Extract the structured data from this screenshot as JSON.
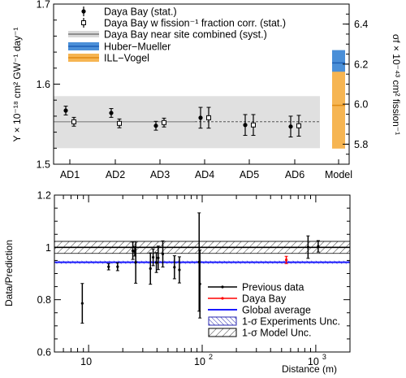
{
  "chart_data": [
    {
      "type": "scatter",
      "ylabel": "Y × 10⁻¹⁸ cm² GW⁻¹ day⁻¹",
      "y2label": "σf × 10⁻⁴³ cm² fission⁻¹",
      "ylim": [
        1.5,
        1.7
      ],
      "y2lim": [
        5.7,
        6.5
      ],
      "yticks": [
        "1.5",
        "1.6",
        "1.7"
      ],
      "y2ticks": [
        "5.8",
        "6.0",
        "6.2",
        "6.4"
      ],
      "categories": [
        "AD1",
        "AD2",
        "AD3",
        "AD4",
        "AD5",
        "AD6",
        "Model"
      ],
      "legend": {
        "placement": "top",
        "entries": [
          {
            "key": "stat",
            "label": "Daya Bay (stat.)"
          },
          {
            "key": "corr",
            "label": "Daya Bay w fission⁻¹ fraction corr. (stat.)"
          },
          {
            "key": "combined",
            "label": "Daya Bay near site combined (syst.)"
          },
          {
            "key": "huber",
            "label": "Huber−Mueller"
          },
          {
            "key": "ill",
            "label": "ILL−Vogel"
          }
        ]
      },
      "series": [
        {
          "name": "Daya Bay (stat.)",
          "x": [
            "AD1",
            "AD2",
            "AD3",
            "AD4",
            "AD5",
            "AD6"
          ],
          "values": [
            1.567,
            1.564,
            1.548,
            1.558,
            1.549,
            1.547
          ],
          "err": [
            0.0055,
            0.0055,
            0.0055,
            0.013,
            0.013,
            0.013
          ]
        },
        {
          "name": "Daya Bay w fission⁻¹ fraction corr. (stat.)",
          "x": [
            "AD1",
            "AD2",
            "AD3",
            "AD4",
            "AD5",
            "AD6"
          ],
          "values": [
            1.553,
            1.551,
            1.552,
            1.558,
            1.549,
            1.548
          ],
          "err": [
            0.0055,
            0.0055,
            0.0055,
            0.013,
            0.013,
            0.013
          ]
        }
      ],
      "band": {
        "name": "Daya Bay near site combined (syst.)",
        "center": 1.553,
        "low": 1.52,
        "high": 1.585,
        "color": "#e0e0e0"
      },
      "model": [
        {
          "name": "Huber−Mueller",
          "center": 1.6265,
          "low": 1.6095,
          "high": 1.6425,
          "color": "#4a8fd8",
          "center_color": "#1d5fb5"
        },
        {
          "name": "ILL−Vogel",
          "center": 1.5735,
          "low": 1.5195,
          "high": 1.6155,
          "color": "#f6b552",
          "center_color": "#e08a12"
        }
      ]
    },
    {
      "type": "scatter",
      "xlabel": "Distance (m)",
      "ylabel": "Data/Prediction",
      "xscale": "log",
      "xlim": [
        5,
        2000
      ],
      "ylim": [
        0.6,
        1.2
      ],
      "yticks": [
        "0.6",
        "0.8",
        "1",
        "1.2"
      ],
      "xticks": [
        {
          "base": "10",
          "exp": ""
        },
        {
          "base": "10",
          "exp": "2"
        },
        {
          "base": "10",
          "exp": "3"
        }
      ],
      "legend": {
        "placement": "bottom-right",
        "entries": [
          {
            "key": "prev",
            "label": "Previous data"
          },
          {
            "key": "dyb",
            "label": "Daya Bay"
          },
          {
            "key": "global",
            "label": "Global average"
          },
          {
            "key": "expunc",
            "label": "1-σ Experiments Unc."
          },
          {
            "key": "modunc",
            "label": "1-σ Model Unc."
          }
        ]
      },
      "model_band": {
        "center": 1.0,
        "low": 0.977,
        "high": 1.023
      },
      "global_average": {
        "value": 0.943,
        "low": 0.937,
        "high": 0.949,
        "color": "#1a1aff"
      },
      "series": [
        {
          "name": "Previous data",
          "color": "#000000",
          "points": [
            {
              "x": 8.8,
              "y": 0.786,
              "err": 0.076
            },
            {
              "x": 15.0,
              "y": 0.926,
              "err": 0.012
            },
            {
              "x": 18.0,
              "y": 0.926,
              "err": 0.015
            },
            {
              "x": 24.5,
              "y": 0.987,
              "err": 0.033
            },
            {
              "x": 25.5,
              "y": 0.985,
              "err": 0.018
            },
            {
              "x": 26.0,
              "y": 0.943,
              "err": 0.08
            },
            {
              "x": 35.0,
              "y": 0.919,
              "err": 0.06
            },
            {
              "x": 37.0,
              "y": 0.962,
              "err": 0.032
            },
            {
              "x": 39.5,
              "y": 0.942,
              "err": 0.038
            },
            {
              "x": 41.0,
              "y": 0.96,
              "err": 0.045
            },
            {
              "x": 45.0,
              "y": 0.975,
              "err": 0.05
            },
            {
              "x": 57.0,
              "y": 0.924,
              "err": 0.044
            },
            {
              "x": 63.0,
              "y": 0.914,
              "err": 0.05
            },
            {
              "x": 94.0,
              "y": 0.944,
              "err": 0.188
            },
            {
              "x": 95.5,
              "y": 0.86,
              "err": 0.13
            },
            {
              "x": 855.0,
              "y": 1.001,
              "err": 0.043
            },
            {
              "x": 1050.0,
              "y": 1.004,
              "err": 0.022
            }
          ]
        },
        {
          "name": "Daya Bay",
          "color": "#ff0000",
          "points": [
            {
              "x": 550.0,
              "y": 0.952,
              "err": 0.014
            }
          ]
        }
      ]
    }
  ]
}
